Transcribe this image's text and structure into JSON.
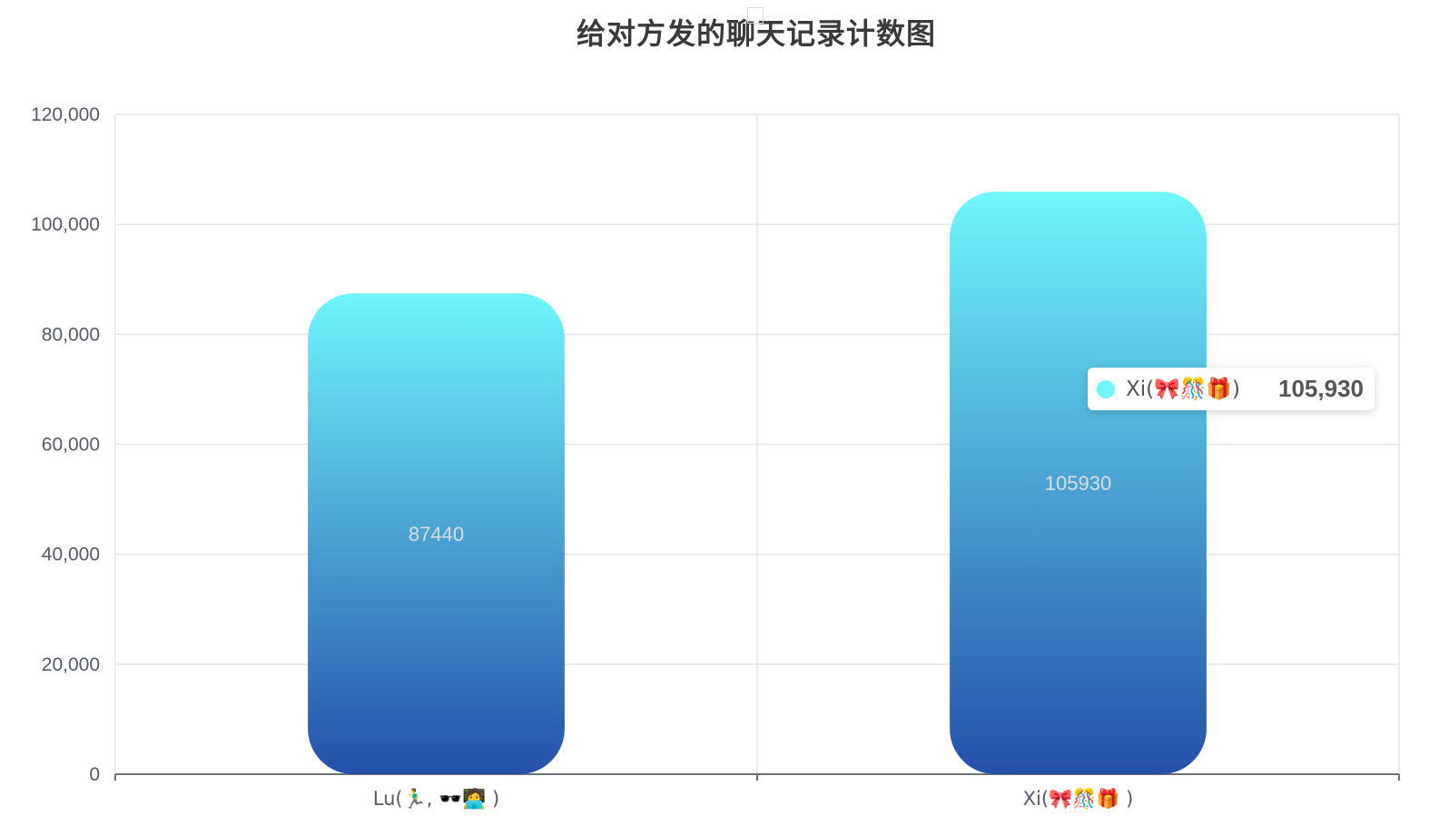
{
  "chart_data": {
    "type": "bar",
    "title": "给对方发的聊天记录计数图",
    "categories": [
      "Lu(🏃‍♂️, 🕶️🧑‍💻 )",
      "Xi(🎀🎊🎁 )"
    ],
    "series": [
      {
        "values": [
          87440,
          105930
        ]
      }
    ],
    "data_labels": [
      "87440",
      "105930"
    ],
    "ylim": [
      0,
      120000
    ],
    "yticks": [
      0,
      20000,
      40000,
      60000,
      80000,
      100000,
      120000
    ],
    "ytick_labels": [
      "0",
      "20,000",
      "40,000",
      "60,000",
      "80,000",
      "100,000",
      "120,000"
    ],
    "xlabel": "",
    "ylabel": "",
    "grid": true,
    "bar_gradient": {
      "top": "#6ff6fb",
      "bottom": "#2550aa"
    }
  },
  "tooltip": {
    "name": "Xi(🎀🎊🎁)",
    "value": "105,930",
    "dot_color": "#6ff6fb"
  },
  "colors": {
    "grid": "#e3e5ee",
    "axis": "#6e7079",
    "tick_text": "#555b6b",
    "title_text": "#3a3a3a"
  }
}
